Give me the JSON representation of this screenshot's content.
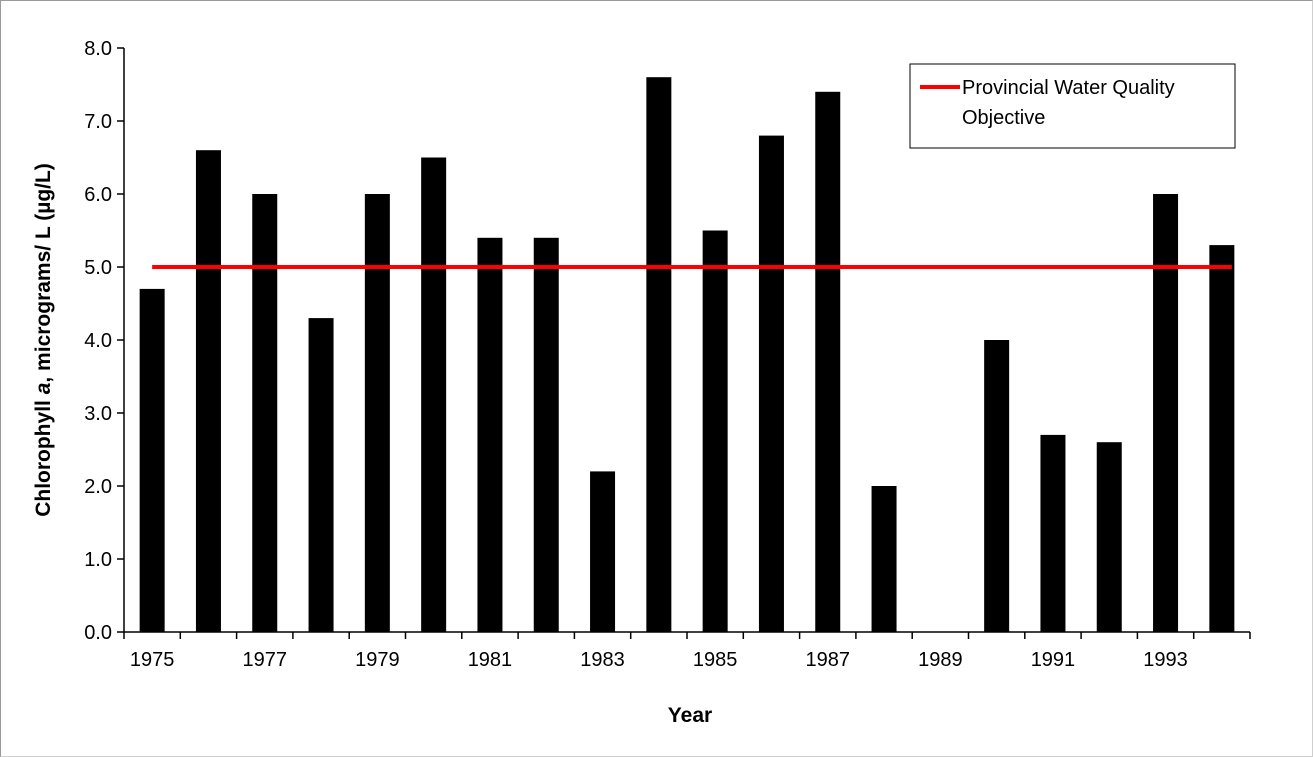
{
  "chart_data": {
    "type": "bar",
    "categories": [
      "1975",
      "1976",
      "1977",
      "1978",
      "1979",
      "1980",
      "1981",
      "1982",
      "1983",
      "1984",
      "1985",
      "1986",
      "1987",
      "1988",
      "1989",
      "1990",
      "1991",
      "1992",
      "1993",
      "1994"
    ],
    "x_tick_labels": [
      "1975",
      "1977",
      "1979",
      "1981",
      "1983",
      "1985",
      "1987",
      "1989",
      "1991",
      "1993"
    ],
    "values": [
      4.7,
      6.6,
      6.0,
      4.3,
      6.0,
      6.5,
      5.4,
      5.4,
      2.2,
      7.6,
      5.5,
      6.8,
      7.4,
      2.0,
      null,
      4.0,
      2.7,
      2.6,
      6.0,
      5.3
    ],
    "y_tick_labels": [
      "0.0",
      "1.0",
      "2.0",
      "3.0",
      "4.0",
      "5.0",
      "6.0",
      "7.0",
      "8.0"
    ],
    "ylim": [
      0,
      8
    ],
    "xlabel": "Year",
    "ylabel_parts": [
      "Chlorophyll ",
      "a",
      ", micrograms/ L (µg/L)"
    ],
    "bar_color": "#000000",
    "reference_line": {
      "name_lines": [
        "Provincial Water Quality",
        "Objective"
      ],
      "value": 5.0,
      "color": "#ff0000"
    },
    "legend_position": "top-right",
    "grid": false
  }
}
